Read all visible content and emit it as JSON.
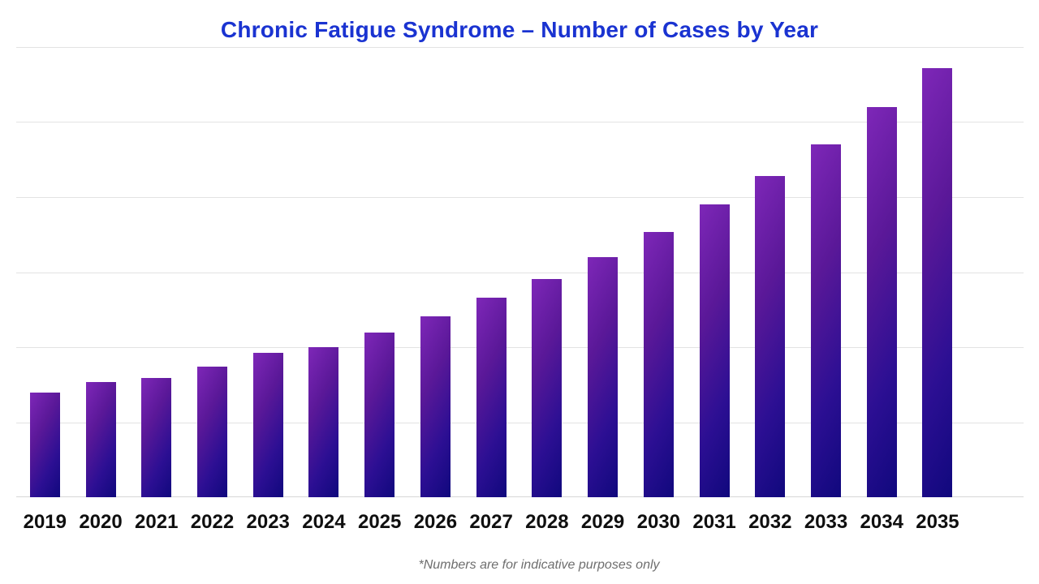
{
  "header": {
    "title": "Chronic Fatigue Syndrome – Number of Cases by Year"
  },
  "footnote": "*Numbers are for indicative purposes only",
  "colors": {
    "title_blue": "#1a33d1",
    "gridline": "#e3e3e3",
    "baseline": "#d7d7d7",
    "label_text": "#0f0f0f",
    "footnote_gray": "#6e6e6e",
    "background": "#ffffff"
  },
  "chart_data": {
    "type": "bar",
    "title": "Chronic Fatigue Syndrome – Number of Cases by Year",
    "categories": [
      "2019",
      "2020",
      "2021",
      "2022",
      "2023",
      "2024",
      "2025",
      "2026",
      "2027",
      "2028",
      "2029",
      "2030",
      "2031",
      "2032",
      "2033",
      "2034",
      "2035"
    ],
    "values": [
      139,
      153,
      159,
      174,
      192,
      200,
      219,
      241,
      266,
      291,
      320,
      353,
      390,
      428,
      470,
      520,
      572
    ],
    "xlabel": "",
    "ylabel": "",
    "ylim": [
      0,
      600
    ],
    "gridline_count": 7,
    "grid": true,
    "legend": false,
    "y_axis_labels_visible": false,
    "value_note": "y-axis has no tick labels; values estimated in arbitrary units with one gridline interval = 100",
    "bar_gradient": [
      "#7e27b8",
      "#5a1898",
      "#2c0f93",
      "#10087d"
    ],
    "annotation": "*Numbers are for indicative purposes only"
  }
}
